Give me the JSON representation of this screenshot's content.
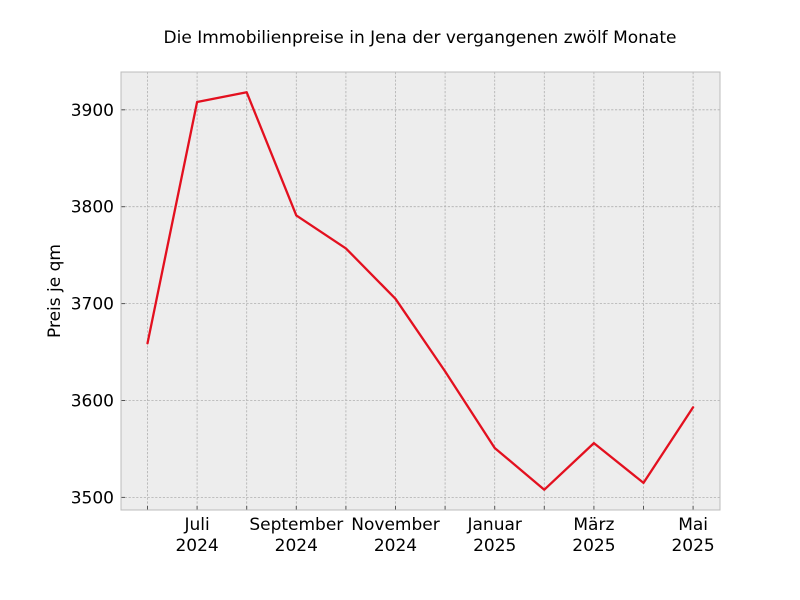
{
  "chart_data": {
    "type": "line",
    "title": "Die Immobilienpreise in Jena der vergangenen zwölf Monate",
    "xlabel": "",
    "ylabel": "Preis je qm",
    "x": [
      "2024-06",
      "2024-07",
      "2024-08",
      "2024-09",
      "2024-10",
      "2024-11",
      "2024-12",
      "2025-01",
      "2025-02",
      "2025-03",
      "2025-04",
      "2025-05"
    ],
    "series": [
      {
        "values": [
          3659,
          3908,
          3918,
          3791,
          3757,
          3705,
          3630,
          3551,
          3508,
          3556,
          3515,
          3593
        ]
      }
    ],
    "ylim": [
      3487,
      3939
    ],
    "yticks": [
      3500,
      3600,
      3700,
      3800,
      3900
    ],
    "xticks": [
      {
        "month": "Juli",
        "year": "2024"
      },
      {
        "month": "September",
        "year": "2024"
      },
      {
        "month": "November",
        "year": "2024"
      },
      {
        "month": "Januar",
        "year": "2025"
      },
      {
        "month": "März",
        "year": "2025"
      },
      {
        "month": "Mai",
        "year": "2025"
      }
    ],
    "grid": true,
    "colors": {
      "line": "#e3101f",
      "plot_background": "#ededed",
      "grid": "#b0b0b0",
      "frame": "#bcbcbc"
    }
  }
}
